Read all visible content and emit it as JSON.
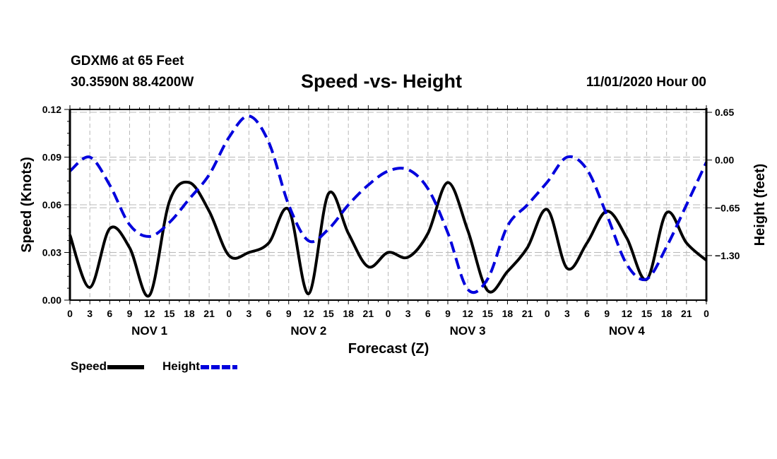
{
  "header": {
    "station": "GDXM6 at 65 Feet",
    "coordinates": "30.3590N 88.4200W",
    "title": "Speed -vs- Height",
    "datestamp": "11/01/2020 Hour 00"
  },
  "legend": [
    {
      "label": "Speed",
      "color": "#000000",
      "style": "solid"
    },
    {
      "label": "Height",
      "color": "#0000dd",
      "style": "dashed"
    }
  ],
  "chart_data": {
    "type": "line",
    "title": "Speed -vs- Height",
    "xlabel": "Forecast (Z)",
    "ylabel": "Speed (Knots)",
    "y2label": "Height (feet)",
    "x_hours": [
      0,
      3,
      6,
      9,
      12,
      15,
      18,
      21,
      24,
      27,
      30,
      33,
      36,
      39,
      42,
      45,
      48,
      51,
      54,
      57,
      60,
      63,
      66,
      69,
      72,
      75,
      78,
      81,
      84,
      87,
      90,
      93,
      96
    ],
    "x_tick_labels": [
      "0",
      "3",
      "6",
      "9",
      "12",
      "15",
      "18",
      "21",
      "0",
      "3",
      "6",
      "9",
      "12",
      "15",
      "18",
      "21",
      "0",
      "3",
      "6",
      "9",
      "12",
      "15",
      "18",
      "21",
      "0",
      "3",
      "6",
      "9",
      "12",
      "15",
      "18",
      "21",
      "0"
    ],
    "day_labels": [
      {
        "label": "NOV 1",
        "center_hour": 12
      },
      {
        "label": "NOV 2",
        "center_hour": 36
      },
      {
        "label": "NOV 3",
        "center_hour": 60
      },
      {
        "label": "NOV 4",
        "center_hour": 84
      }
    ],
    "xlim": [
      0,
      96
    ],
    "ylim": [
      0,
      0.12
    ],
    "y_ticks": [
      0.0,
      0.03,
      0.06,
      0.09,
      0.12
    ],
    "y_tick_labels": [
      "0.00",
      "0.03",
      "0.06",
      "0.09",
      "0.12"
    ],
    "y2lim": [
      -1.907,
      0.689
    ],
    "y2_ticks": [
      0.65,
      0.0,
      -0.65,
      -1.3
    ],
    "y2_tick_labels": [
      "0.65",
      "0.00",
      "−0.65",
      "−1.30"
    ],
    "grid": true,
    "legend_position": "bottom-left",
    "series": [
      {
        "name": "Speed",
        "axis": "left",
        "color": "#000000",
        "style": "solid",
        "values": [
          0.041,
          0.008,
          0.045,
          0.033,
          0.003,
          0.062,
          0.074,
          0.056,
          0.028,
          0.03,
          0.036,
          0.057,
          0.004,
          0.067,
          0.042,
          0.021,
          0.03,
          0.027,
          0.042,
          0.074,
          0.044,
          0.006,
          0.018,
          0.033,
          0.057,
          0.02,
          0.036,
          0.056,
          0.039,
          0.013,
          0.055,
          0.036,
          0.025
        ]
      },
      {
        "name": "Height",
        "axis": "right",
        "color": "#0000dd",
        "style": "dashed",
        "values": [
          -0.15,
          0.04,
          -0.34,
          -0.88,
          -1.04,
          -0.85,
          -0.53,
          -0.2,
          0.31,
          0.6,
          0.24,
          -0.61,
          -1.1,
          -0.94,
          -0.61,
          -0.34,
          -0.15,
          -0.13,
          -0.39,
          -0.99,
          -1.76,
          -1.62,
          -0.9,
          -0.61,
          -0.3,
          0.04,
          -0.13,
          -0.75,
          -1.42,
          -1.62,
          -1.18,
          -0.61,
          -0.03
        ]
      }
    ]
  }
}
